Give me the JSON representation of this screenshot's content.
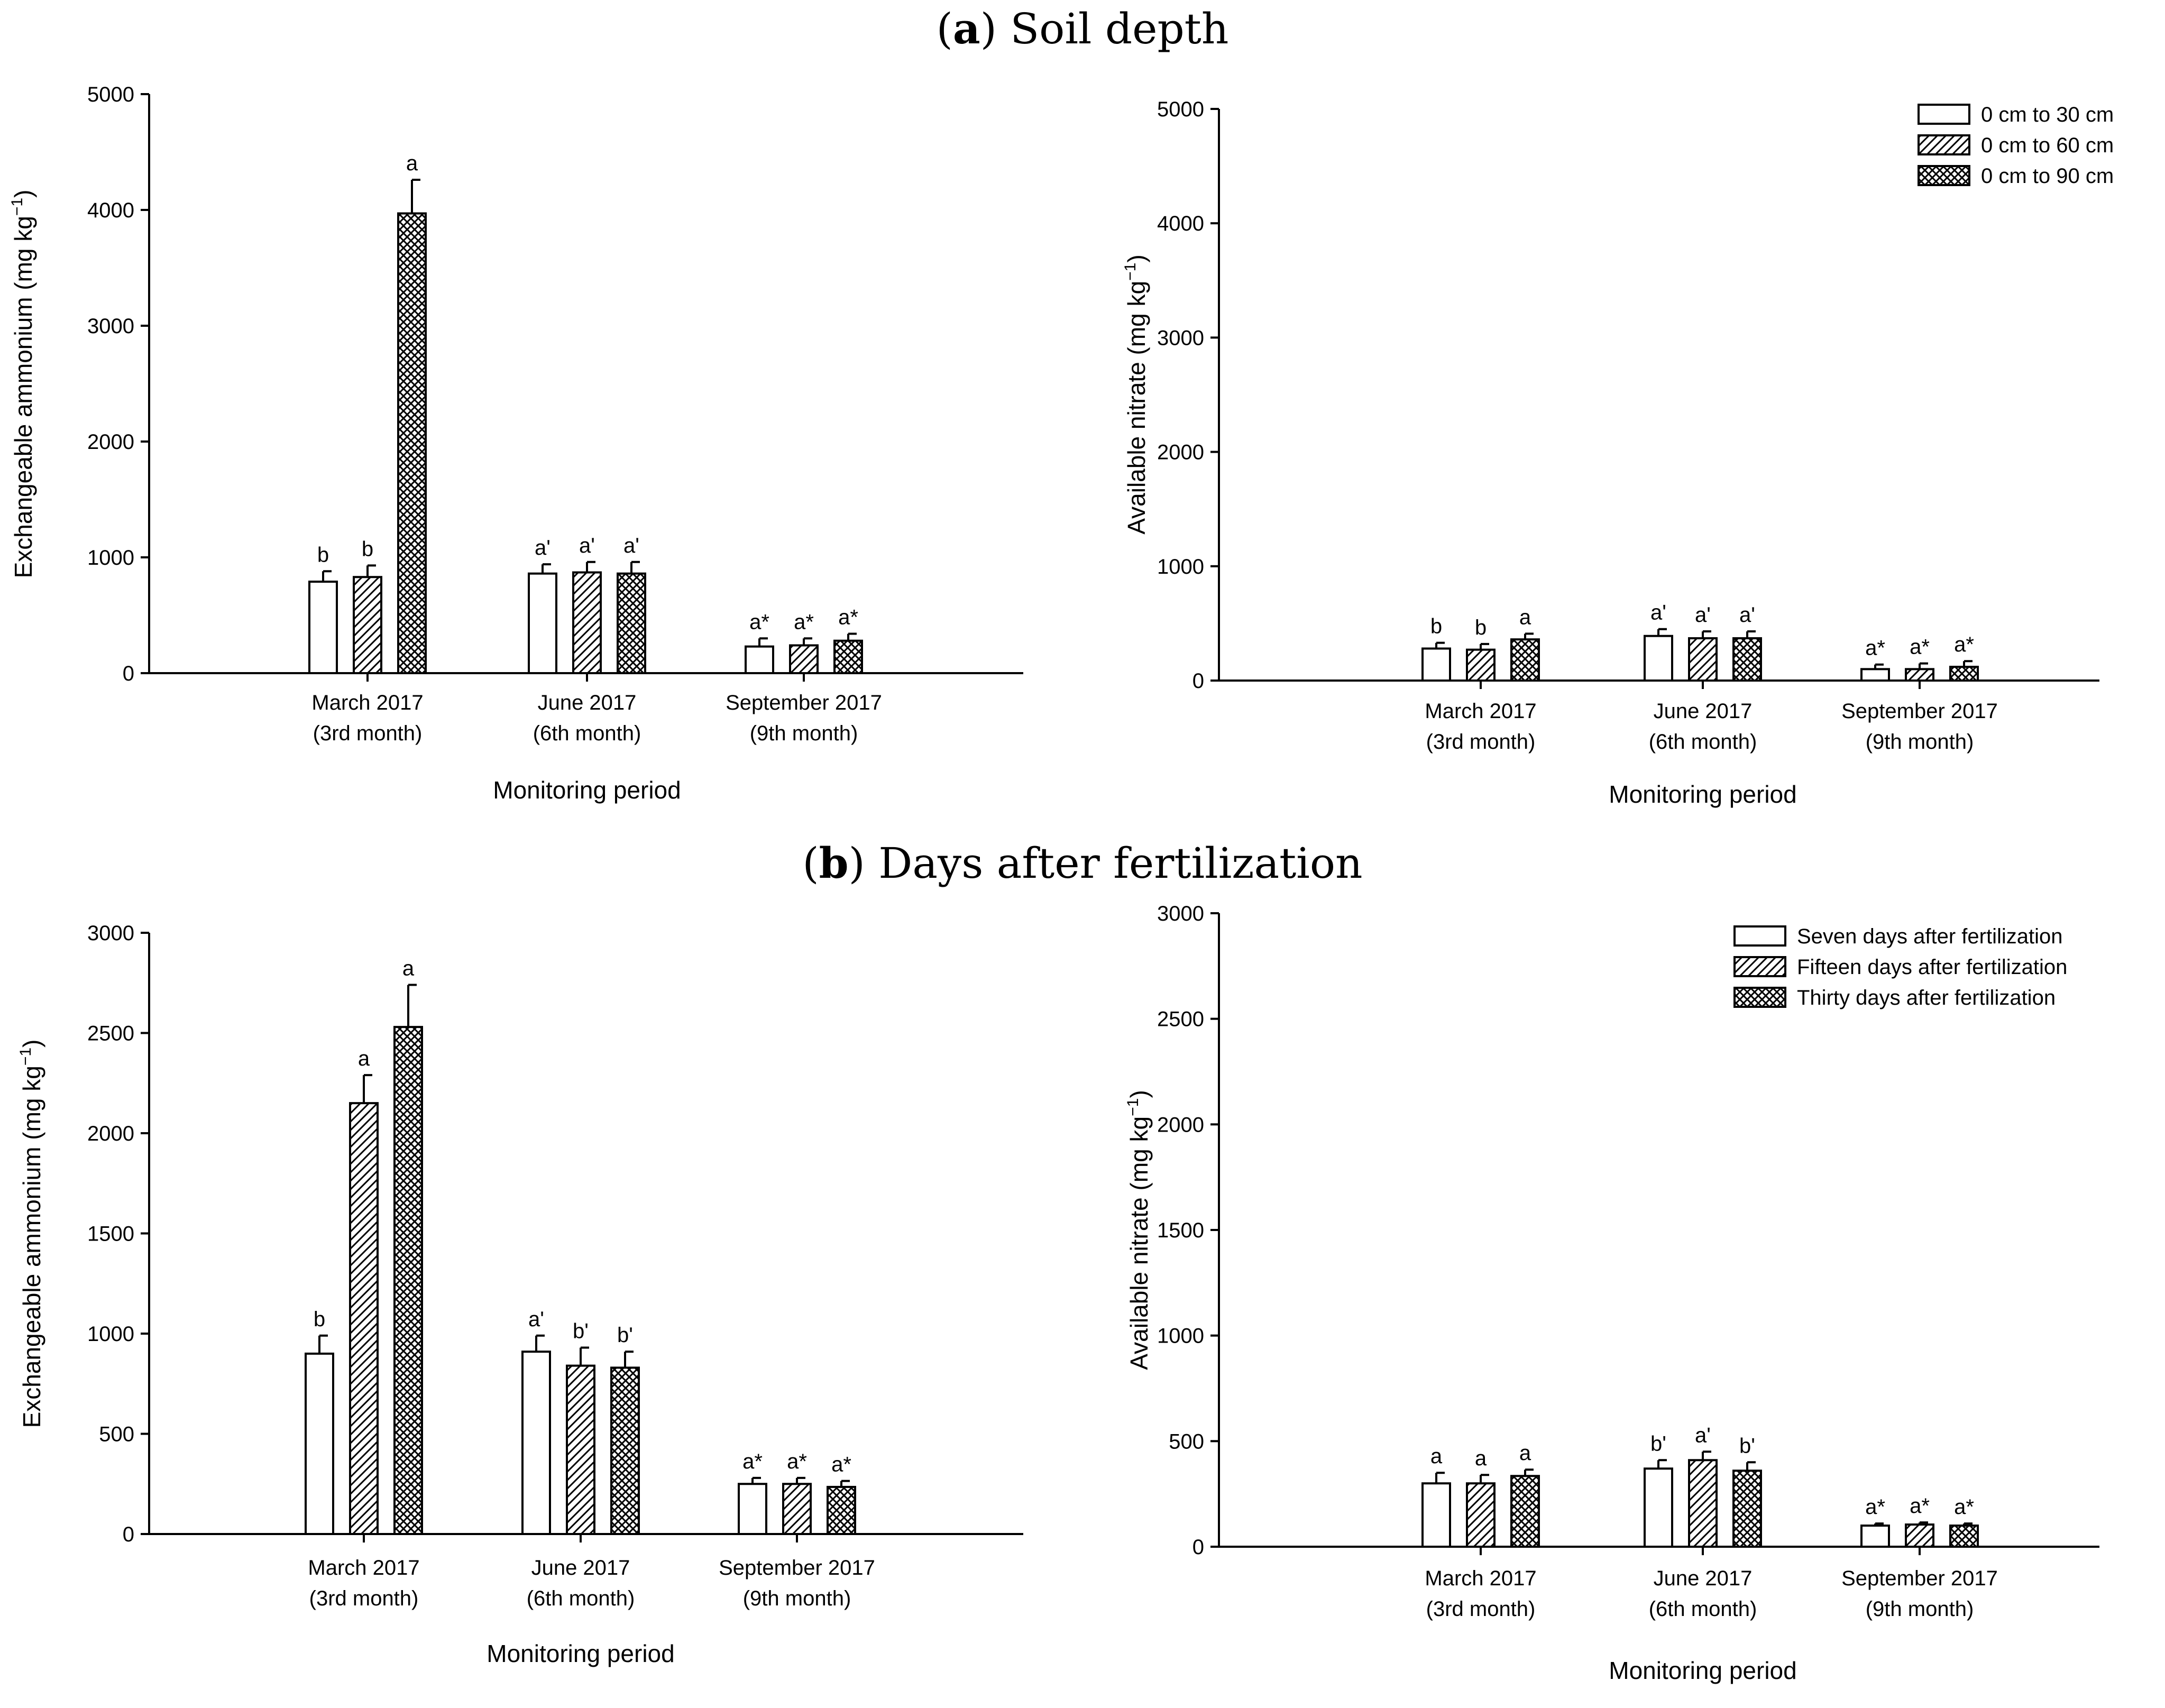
{
  "sections": [
    {
      "letter": "a",
      "title": "Soil depth"
    },
    {
      "letter": "b",
      "title": "Days after fertilization"
    }
  ],
  "chart_data": [
    {
      "type": "bar",
      "section": "a",
      "ylabel": "Exchangeable ammonium (mg kg",
      "ylabel_sup": "−1",
      "ylabel_close": ")",
      "xlabel": "Monitoring period",
      "ylim": [
        0,
        5000
      ],
      "yticks": [
        0,
        1000,
        2000,
        3000,
        4000,
        5000
      ],
      "categories": [
        {
          "line1": "March 2017",
          "line2": "(3rd month)"
        },
        {
          "line1": "June 2017",
          "line2": "(6th month)"
        },
        {
          "line1": "September 2017",
          "line2": "(9th month)"
        }
      ],
      "series": [
        {
          "name": "0 cm to 30 cm",
          "pattern": "blank",
          "values": [
            790,
            860,
            230
          ],
          "errors": [
            90,
            80,
            70
          ],
          "labels": [
            "b",
            "a'",
            "a*"
          ]
        },
        {
          "name": "0 cm to 60 cm",
          "pattern": "hatch",
          "values": [
            830,
            870,
            240
          ],
          "errors": [
            100,
            90,
            60
          ],
          "labels": [
            "b",
            "a'",
            "a*"
          ]
        },
        {
          "name": "0 cm to 90 cm",
          "pattern": "cross",
          "values": [
            3970,
            860,
            280
          ],
          "errors": [
            290,
            100,
            60
          ],
          "labels": [
            "a",
            "a'",
            "a*"
          ]
        }
      ],
      "legend": false
    },
    {
      "type": "bar",
      "section": "a",
      "ylabel": "Available nitrate (mg kg",
      "ylabel_sup": "−1",
      "ylabel_close": ")",
      "xlabel": "Monitoring period",
      "ylim": [
        0,
        5000
      ],
      "yticks": [
        0,
        1000,
        2000,
        3000,
        4000,
        5000
      ],
      "categories": [
        {
          "line1": "March 2017",
          "line2": "(3rd month)"
        },
        {
          "line1": "June 2017",
          "line2": "(6th month)"
        },
        {
          "line1": "September 2017",
          "line2": "(9th month)"
        }
      ],
      "series": [
        {
          "name": "0 cm to 30 cm",
          "pattern": "blank",
          "values": [
            280,
            390,
            100
          ],
          "errors": [
            50,
            60,
            40
          ],
          "labels": [
            "b",
            "a'",
            "a*"
          ]
        },
        {
          "name": "0 cm to 60 cm",
          "pattern": "hatch",
          "values": [
            270,
            370,
            100
          ],
          "errors": [
            50,
            60,
            50
          ],
          "labels": [
            "b",
            "a'",
            "a*"
          ]
        },
        {
          "name": "0 cm to 90 cm",
          "pattern": "cross",
          "values": [
            360,
            370,
            120
          ],
          "errors": [
            50,
            60,
            50
          ],
          "labels": [
            "a",
            "a'",
            "a*"
          ]
        }
      ],
      "legend": true,
      "legend_position": "top-right"
    },
    {
      "type": "bar",
      "section": "b",
      "ylabel": "Exchangeable ammonium (mg kg",
      "ylabel_sup": "−1",
      "ylabel_close": ")",
      "xlabel": "Monitoring period",
      "ylim": [
        0,
        3000
      ],
      "yticks": [
        0,
        500,
        1000,
        1500,
        2000,
        2500,
        3000
      ],
      "categories": [
        {
          "line1": "March 2017",
          "line2": "(3rd month)"
        },
        {
          "line1": "June 2017",
          "line2": "(6th month)"
        },
        {
          "line1": "September 2017",
          "line2": "(9th month)"
        }
      ],
      "series": [
        {
          "name": "Seven days after fertilization",
          "pattern": "blank",
          "values": [
            900,
            910,
            250
          ],
          "errors": [
            90,
            80,
            30
          ],
          "labels": [
            "b",
            "a'",
            "a*"
          ]
        },
        {
          "name": "Fifteen days after fertilization",
          "pattern": "hatch",
          "values": [
            2150,
            840,
            250
          ],
          "errors": [
            140,
            90,
            30
          ],
          "labels": [
            "a",
            "b'",
            "a*"
          ]
        },
        {
          "name": "Thirty days after fertilization",
          "pattern": "cross",
          "values": [
            2530,
            830,
            235
          ],
          "errors": [
            210,
            80,
            30
          ],
          "labels": [
            "a",
            "b'",
            "a*"
          ]
        }
      ],
      "legend": false
    },
    {
      "type": "bar",
      "section": "b",
      "ylabel": "Available nitrate (mg kg",
      "ylabel_sup": "−1",
      "ylabel_close": ")",
      "xlabel": "Monitoring period",
      "ylim": [
        0,
        3000
      ],
      "yticks": [
        0,
        500,
        1000,
        1500,
        2000,
        2500,
        3000
      ],
      "categories": [
        {
          "line1": "March 2017",
          "line2": "(3rd month)"
        },
        {
          "line1": "June 2017",
          "line2": "(6th month)"
        },
        {
          "line1": "September 2017",
          "line2": "(9th month)"
        }
      ],
      "series": [
        {
          "name": "Seven days after fertilization",
          "pattern": "blank",
          "values": [
            300,
            370,
            100
          ],
          "errors": [
            50,
            40,
            10
          ],
          "labels": [
            "a",
            "b'",
            "a*"
          ]
        },
        {
          "name": "Fifteen days after fertilization",
          "pattern": "hatch",
          "values": [
            300,
            410,
            105
          ],
          "errors": [
            40,
            40,
            10
          ],
          "labels": [
            "a",
            "a'",
            "a*"
          ]
        },
        {
          "name": "Thirty days after fertilization",
          "pattern": "cross",
          "values": [
            335,
            360,
            100
          ],
          "errors": [
            30,
            40,
            10
          ],
          "labels": [
            "a",
            "b'",
            "a*"
          ]
        }
      ],
      "legend": true,
      "legend_position": "top-right"
    }
  ]
}
